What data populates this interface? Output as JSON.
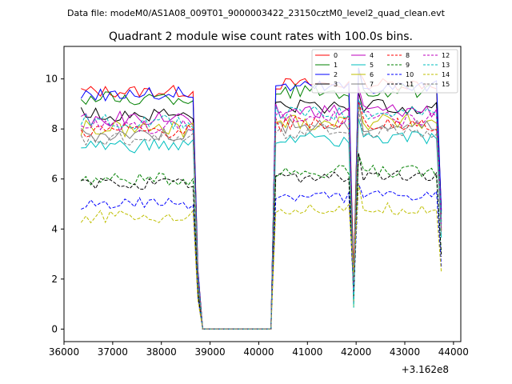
{
  "suptitle": "Data file: modeM0/AS1A08_009T01_9000003422_23150cztM0_level2_quad_clean.evt",
  "chart_data": {
    "type": "line",
    "title": "Quadrant 2 module wise count rates with 100.0s bins.",
    "xlabel": "",
    "ylabel": "",
    "x_offset_label": "+3.162e8",
    "xlim": [
      36000,
      44150
    ],
    "ylim": [
      -0.5,
      11.3
    ],
    "x_ticks": [
      36000,
      37000,
      38000,
      39000,
      40000,
      41000,
      42000,
      43000,
      44000
    ],
    "y_ticks": [
      0,
      2,
      4,
      6,
      8,
      10
    ],
    "grid": false,
    "legend_position": "top-right",
    "legend_columns": 4,
    "x_start": 36350,
    "x_step": 100,
    "gap": [
      38850,
      40250
    ],
    "spike": 41950,
    "x_end": 43750,
    "series": [
      {
        "name": "0",
        "color": "#ff0000",
        "dash": "solid",
        "level": 9.5,
        "amp": 0.25
      },
      {
        "name": "1",
        "color": "#008000",
        "dash": "solid",
        "level": 9.2,
        "amp": 0.3
      },
      {
        "name": "2",
        "color": "#0000ff",
        "dash": "solid",
        "level": 9.4,
        "amp": 0.3
      },
      {
        "name": "3",
        "color": "#000000",
        "dash": "solid",
        "level": 8.6,
        "amp": 0.3
      },
      {
        "name": "4",
        "color": "#bf00bf",
        "dash": "solid",
        "level": 8.4,
        "amp": 0.3
      },
      {
        "name": "5",
        "color": "#00bfbf",
        "dash": "solid",
        "level": 7.3,
        "amp": 0.3
      },
      {
        "name": "6",
        "color": "#bfbf00",
        "dash": "solid",
        "level": 8.0,
        "amp": 0.35
      },
      {
        "name": "7",
        "color": "#808080",
        "dash": "solid",
        "level": 7.8,
        "amp": 0.3
      },
      {
        "name": "8",
        "color": "#ff0000",
        "dash": "dashed",
        "level": 7.9,
        "amp": 0.3
      },
      {
        "name": "9",
        "color": "#008000",
        "dash": "dashed",
        "level": 6.0,
        "amp": 0.25
      },
      {
        "name": "10",
        "color": "#0000ff",
        "dash": "dashed",
        "level": 5.0,
        "amp": 0.25
      },
      {
        "name": "11",
        "color": "#000000",
        "dash": "dashed",
        "level": 5.8,
        "amp": 0.25
      },
      {
        "name": "12",
        "color": "#bf00bf",
        "dash": "dashed",
        "level": 8.1,
        "amp": 0.3
      },
      {
        "name": "13",
        "color": "#00bfbf",
        "dash": "dashed",
        "level": 8.3,
        "amp": 0.3
      },
      {
        "name": "14",
        "color": "#bfbf00",
        "dash": "dashed",
        "level": 4.5,
        "amp": 0.25
      },
      {
        "name": "15",
        "color": "#808080",
        "dash": "dashed",
        "level": 7.6,
        "amp": 0.3
      }
    ]
  }
}
